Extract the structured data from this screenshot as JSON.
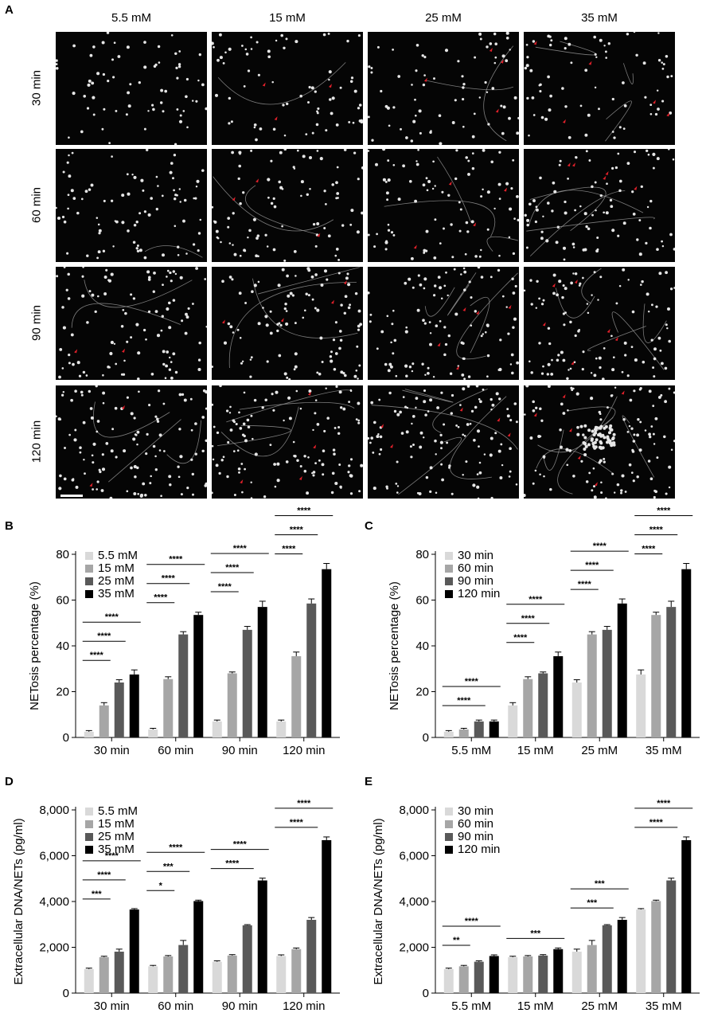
{
  "panel_a": {
    "label": "A",
    "columns": [
      "5.5 mM",
      "15 mM",
      "25 mM",
      "35 mM"
    ],
    "rows": [
      "30 min",
      "60 min",
      "90 min",
      "120 min"
    ]
  },
  "colors": {
    "image_background": "#050505",
    "cells": "#e6e6e6",
    "arrow": "#e0202a",
    "bar_shades": [
      "#d9d9d9",
      "#a6a6a6",
      "#595959",
      "#000000"
    ]
  },
  "chart_data": [
    {
      "panel": "B",
      "type": "bar",
      "categories": [
        "30 min",
        "60 min",
        "90 min",
        "120 min"
      ],
      "series": [
        {
          "name": "5.5 mM",
          "values": [
            2.5,
            3.5,
            7,
            7
          ],
          "errors": [
            0.5,
            0.5,
            0.6,
            0.6
          ]
        },
        {
          "name": "15 mM",
          "values": [
            14,
            25.5,
            28,
            35.5
          ],
          "errors": [
            1.2,
            1.0,
            0.6,
            1.8
          ]
        },
        {
          "name": "25 mM",
          "values": [
            24,
            45,
            47,
            58.5
          ],
          "errors": [
            1.2,
            1.2,
            1.5,
            2.0
          ]
        },
        {
          "name": "35 mM",
          "values": [
            27.5,
            53.5,
            57,
            73.5
          ],
          "errors": [
            2.0,
            1.2,
            2.5,
            2.5
          ]
        }
      ],
      "ylabel": "NETosis percentage (%)",
      "ylim": [
        0,
        80
      ],
      "yticks": [
        "0",
        "20",
        "40",
        "60",
        "80"
      ],
      "legend": "top-left",
      "significance": [
        {
          "group": 0,
          "from": 0,
          "to": 1,
          "label": "****"
        },
        {
          "group": 0,
          "from": 0,
          "to": 2,
          "label": "****"
        },
        {
          "group": 0,
          "from": 0,
          "to": 3,
          "label": "****"
        },
        {
          "group": 1,
          "from": 0,
          "to": 1,
          "label": "****"
        },
        {
          "group": 1,
          "from": 0,
          "to": 2,
          "label": "****"
        },
        {
          "group": 1,
          "from": 0,
          "to": 3,
          "label": "****"
        },
        {
          "group": 2,
          "from": 0,
          "to": 1,
          "label": "****"
        },
        {
          "group": 2,
          "from": 0,
          "to": 2,
          "label": "****"
        },
        {
          "group": 2,
          "from": 0,
          "to": 3,
          "label": "****"
        },
        {
          "group": 3,
          "from": 0,
          "to": 1,
          "label": "****"
        },
        {
          "group": 3,
          "from": 0,
          "to": 2,
          "label": "****"
        },
        {
          "group": 3,
          "from": 0,
          "to": 3,
          "label": "****"
        }
      ]
    },
    {
      "panel": "C",
      "type": "bar",
      "categories": [
        "5.5 mM",
        "15 mM",
        "25 mM",
        "35 mM"
      ],
      "series": [
        {
          "name": "30 min",
          "values": [
            2.5,
            14,
            24,
            27.5
          ],
          "errors": [
            0.5,
            1.2,
            1.2,
            2.0
          ]
        },
        {
          "name": "60 min",
          "values": [
            3.5,
            25.5,
            45,
            53.5
          ],
          "errors": [
            0.5,
            1.0,
            1.2,
            1.2
          ]
        },
        {
          "name": "90 min",
          "values": [
            7,
            28,
            47,
            57
          ],
          "errors": [
            0.6,
            0.6,
            1.5,
            2.5
          ]
        },
        {
          "name": "120 min",
          "values": [
            7,
            35.5,
            58.5,
            73.5
          ],
          "errors": [
            0.6,
            1.8,
            2.0,
            2.5
          ]
        }
      ],
      "ylabel": "NETosis percentage (%)",
      "ylim": [
        0,
        80
      ],
      "yticks": [
        "0",
        "20",
        "40",
        "60",
        "80"
      ],
      "legend": "top-left",
      "significance": [
        {
          "group": 0,
          "from": 0,
          "to": 2,
          "label": "****"
        },
        {
          "group": 0,
          "from": 0,
          "to": 3,
          "label": "****"
        },
        {
          "group": 1,
          "from": 0,
          "to": 1,
          "label": "****"
        },
        {
          "group": 1,
          "from": 0,
          "to": 2,
          "label": "****"
        },
        {
          "group": 1,
          "from": 0,
          "to": 3,
          "label": "****"
        },
        {
          "group": 2,
          "from": 0,
          "to": 1,
          "label": "****"
        },
        {
          "group": 2,
          "from": 0,
          "to": 2,
          "label": "****"
        },
        {
          "group": 2,
          "from": 0,
          "to": 3,
          "label": "****"
        },
        {
          "group": 3,
          "from": 0,
          "to": 1,
          "label": "****"
        },
        {
          "group": 3,
          "from": 0,
          "to": 2,
          "label": "****"
        },
        {
          "group": 3,
          "from": 0,
          "to": 3,
          "label": "****"
        }
      ]
    },
    {
      "panel": "D",
      "type": "bar",
      "categories": [
        "30 min",
        "60 min",
        "90 min",
        "120 min"
      ],
      "series": [
        {
          "name": "5.5 mM",
          "values": [
            1050,
            1170,
            1370,
            1620
          ],
          "errors": [
            40,
            40,
            40,
            50
          ]
        },
        {
          "name": "15 mM",
          "values": [
            1570,
            1600,
            1640,
            1920
          ],
          "errors": [
            40,
            40,
            40,
            50
          ]
        },
        {
          "name": "25 mM",
          "values": [
            1810,
            2100,
            2960,
            3200
          ],
          "errors": [
            110,
            200,
            30,
            100
          ]
        },
        {
          "name": "35 mM",
          "values": [
            3650,
            4020,
            4920,
            6680
          ],
          "errors": [
            40,
            40,
            100,
            140
          ]
        }
      ],
      "ylabel": "Extracellular DNA/NETs (pg/ml)",
      "ylim": [
        0,
        8000
      ],
      "yticks": [
        "0",
        "2,000",
        "4,000",
        "6,000",
        "8,000"
      ],
      "legend": "top-left",
      "significance": [
        {
          "group": 0,
          "from": 0,
          "to": 1,
          "label": "***"
        },
        {
          "group": 0,
          "from": 0,
          "to": 2,
          "label": "****"
        },
        {
          "group": 0,
          "from": 0,
          "to": 3,
          "label": "****"
        },
        {
          "group": 1,
          "from": 0,
          "to": 1,
          "label": "*"
        },
        {
          "group": 1,
          "from": 0,
          "to": 2,
          "label": "***"
        },
        {
          "group": 1,
          "from": 0,
          "to": 3,
          "label": "****"
        },
        {
          "group": 2,
          "from": 0,
          "to": 2,
          "label": "****"
        },
        {
          "group": 2,
          "from": 0,
          "to": 3,
          "label": "****"
        },
        {
          "group": 3,
          "from": 0,
          "to": 2,
          "label": "****"
        },
        {
          "group": 3,
          "from": 0,
          "to": 3,
          "label": "****"
        }
      ]
    },
    {
      "panel": "E",
      "type": "bar",
      "categories": [
        "5.5 mM",
        "15 mM",
        "25 mM",
        "35 mM"
      ],
      "series": [
        {
          "name": "30 min",
          "values": [
            1050,
            1570,
            1810,
            3650
          ],
          "errors": [
            40,
            40,
            110,
            40
          ]
        },
        {
          "name": "60 min",
          "values": [
            1170,
            1600,
            2100,
            4020
          ],
          "errors": [
            40,
            40,
            200,
            40
          ]
        },
        {
          "name": "90 min",
          "values": [
            1370,
            1640,
            2960,
            4920
          ],
          "errors": [
            40,
            40,
            30,
            100
          ]
        },
        {
          "name": "120 min",
          "values": [
            1620,
            1920,
            3200,
            6680
          ],
          "errors": [
            50,
            50,
            100,
            140
          ]
        }
      ],
      "ylabel": "Extracellular DNA/NETs (pg/ml)",
      "ylim": [
        0,
        8000
      ],
      "yticks": [
        "0",
        "2,000",
        "4,000",
        "6,000",
        "8,000"
      ],
      "legend": "top-left",
      "significance": [
        {
          "group": 0,
          "from": 0,
          "to": 1,
          "label": "**"
        },
        {
          "group": 0,
          "from": 0,
          "to": 3,
          "label": "****"
        },
        {
          "group": 1,
          "from": 0,
          "to": 3,
          "label": "***"
        },
        {
          "group": 2,
          "from": 0,
          "to": 2,
          "label": "***"
        },
        {
          "group": 2,
          "from": 0,
          "to": 3,
          "label": "***"
        },
        {
          "group": 3,
          "from": 0,
          "to": 2,
          "label": "****"
        },
        {
          "group": 3,
          "from": 0,
          "to": 3,
          "label": "****"
        }
      ]
    }
  ]
}
